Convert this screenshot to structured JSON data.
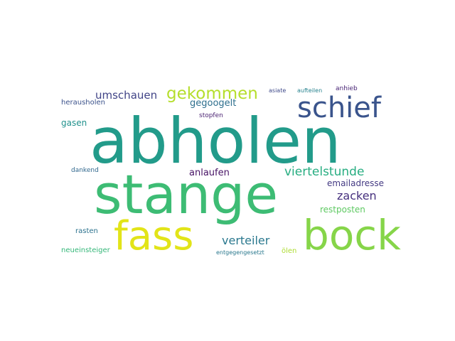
{
  "words": [
    {
      "text": "abholen",
      "color": "#229b8a"
    },
    {
      "text": "stange",
      "color": "#3dbc74"
    },
    {
      "text": "bock",
      "color": "#86d549"
    },
    {
      "text": "fass",
      "color": "#e2e418"
    },
    {
      "text": "schief",
      "color": "#3a548c"
    },
    {
      "text": "gekommen",
      "color": "#b5de2b"
    },
    {
      "text": "umschauen",
      "color": "#414487"
    },
    {
      "text": "viertelstunde",
      "color": "#27ad81"
    },
    {
      "text": "zacken",
      "color": "#46307e"
    },
    {
      "text": "verteiler",
      "color": "#2a788e"
    },
    {
      "text": "gegoogelt",
      "color": "#2e6f8e"
    },
    {
      "text": "anlaufen",
      "color": "#471365"
    },
    {
      "text": "emailadresse",
      "color": "#443a83"
    },
    {
      "text": "gasen",
      "color": "#21918c"
    },
    {
      "text": "restposten",
      "color": "#5ec962"
    },
    {
      "text": "rasten",
      "color": "#2c728e"
    },
    {
      "text": "herausholen",
      "color": "#3b528b"
    },
    {
      "text": "neueinsteiger",
      "color": "#35b779"
    },
    {
      "text": "dankend",
      "color": "#31688e"
    },
    {
      "text": "stopfen",
      "color": "#481f70"
    },
    {
      "text": "anhieb",
      "color": "#482475"
    },
    {
      "text": "asiate",
      "color": "#3e4989"
    },
    {
      "text": "aufteilen",
      "color": "#26828e"
    },
    {
      "text": "entgegengesetzt",
      "color": "#2a788e"
    },
    {
      "text": "ölen",
      "color": "#addc30"
    }
  ]
}
